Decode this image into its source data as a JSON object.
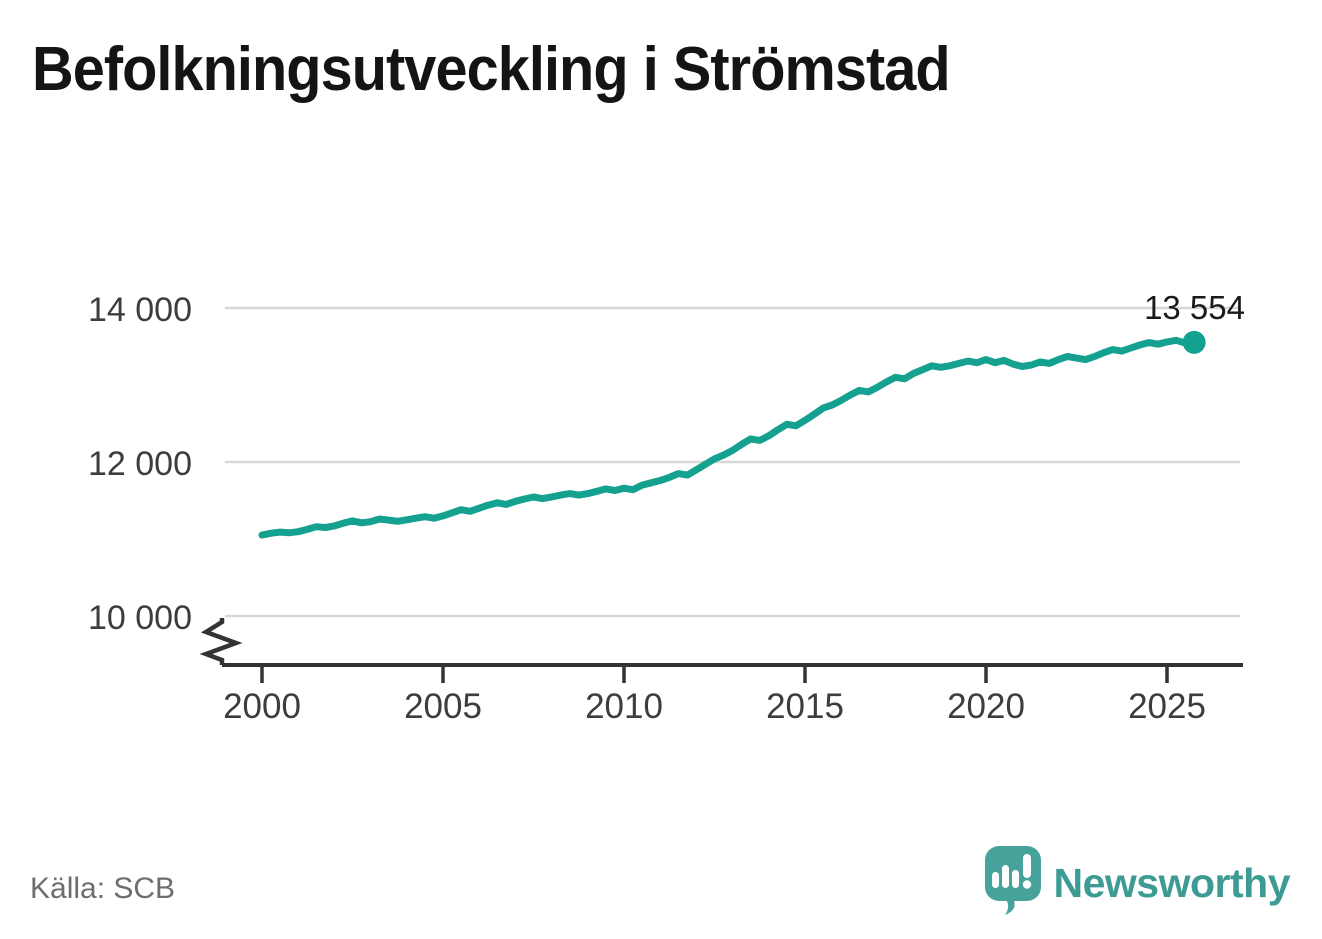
{
  "title": "Befolkningsutveckling i Strömstad",
  "source": "Källa: SCB",
  "brand": {
    "name": "Newsworthy",
    "text_color": "#3E9B94",
    "mark_color": "#46A29A",
    "mark_icon": "bar-chart-exclamation-speech-bubble"
  },
  "chart_data": {
    "type": "line",
    "title": "Befolkningsutveckling i Strömstad",
    "xlabel": "",
    "ylabel": "",
    "grid": "horizontal",
    "axis_break_at_bottom": true,
    "line_color": "#14A190",
    "grid_color": "#d8d8d8",
    "axis_color": "#333333",
    "x_ticks": [
      {
        "value": 2000,
        "label": "2000"
      },
      {
        "value": 2005,
        "label": "2005"
      },
      {
        "value": 2010,
        "label": "2010"
      },
      {
        "value": 2015,
        "label": "2015"
      },
      {
        "value": 2020,
        "label": "2020"
      },
      {
        "value": 2025,
        "label": "2025"
      }
    ],
    "y_ticks": [
      {
        "value": 14000,
        "label": "14 000"
      },
      {
        "value": 12000,
        "label": "12 000"
      },
      {
        "value": 10000,
        "label": "10 000"
      }
    ],
    "xlim": [
      1998.9,
      2027.2
    ],
    "ylim_display": [
      10000,
      14000
    ],
    "end_label": "13 554",
    "end_value": 13554,
    "series": [
      {
        "name": "Befolkning",
        "x_start": 2000.0,
        "x_step": 0.25,
        "values": [
          11050,
          11075,
          11090,
          11080,
          11095,
          11125,
          11160,
          11150,
          11170,
          11205,
          11235,
          11210,
          11225,
          11260,
          11245,
          11230,
          11250,
          11270,
          11290,
          11270,
          11300,
          11340,
          11380,
          11360,
          11400,
          11440,
          11470,
          11450,
          11490,
          11520,
          11545,
          11525,
          11545,
          11570,
          11590,
          11570,
          11590,
          11620,
          11650,
          11630,
          11660,
          11640,
          11700,
          11730,
          11760,
          11800,
          11850,
          11830,
          11900,
          11970,
          12040,
          12090,
          12150,
          12230,
          12300,
          12280,
          12340,
          12420,
          12490,
          12470,
          12540,
          12620,
          12700,
          12740,
          12800,
          12870,
          12930,
          12910,
          12970,
          13040,
          13100,
          13080,
          13150,
          13200,
          13250,
          13230,
          13250,
          13280,
          13310,
          13290,
          13330,
          13290,
          13320,
          13270,
          13240,
          13260,
          13300,
          13280,
          13330,
          13370,
          13350,
          13330,
          13370,
          13420,
          13460,
          13440,
          13480,
          13520,
          13550,
          13530,
          13560,
          13580,
          13545,
          13554
        ]
      }
    ]
  }
}
